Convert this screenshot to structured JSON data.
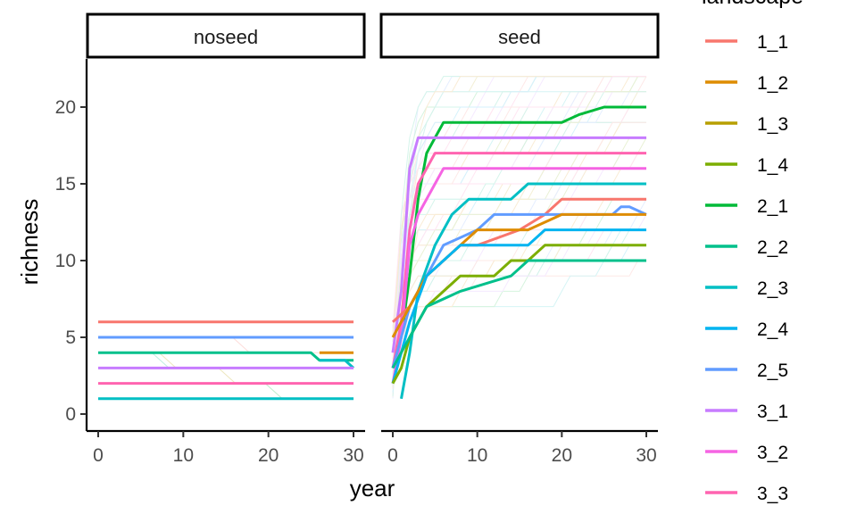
{
  "chart_data": {
    "type": "line",
    "facet_by": "seed treatment",
    "panels": [
      {
        "label": "noseed",
        "series": [
          {
            "name": "1_1",
            "x": [
              0,
              30
            ],
            "y": [
              6,
              6
            ]
          },
          {
            "name": "2_5",
            "x": [
              0,
              30
            ],
            "y": [
              5,
              5
            ]
          },
          {
            "name": "2_2",
            "x": [
              0,
              25,
              26,
              30
            ],
            "y": [
              4,
              4,
              3.5,
              3.5
            ]
          },
          {
            "name": "1_2",
            "x": [
              26,
              30
            ],
            "y": [
              4,
              4
            ]
          },
          {
            "name": "2_3",
            "x": [
              26,
              29,
              30
            ],
            "y": [
              3.5,
              3.5,
              3
            ]
          },
          {
            "name": "3_1",
            "x": [
              0,
              30
            ],
            "y": [
              3,
              3
            ]
          },
          {
            "name": "3_3",
            "x": [
              0,
              30
            ],
            "y": [
              2,
              2
            ]
          },
          {
            "name": "2_3",
            "x": [
              0,
              30
            ],
            "y": [
              1,
              1
            ]
          }
        ]
      },
      {
        "label": "seed",
        "series": [
          {
            "name": "2_1",
            "x": [
              0,
              1,
              2,
              3,
              4,
              5,
              6,
              7,
              20,
              22,
              25,
              30
            ],
            "y": [
              3,
              5,
              9,
              14,
              17,
              18,
              19,
              19,
              19,
              19.5,
              20,
              20
            ]
          },
          {
            "name": "3_1",
            "x": [
              0,
              1,
              2,
              3,
              4,
              30
            ],
            "y": [
              4,
              8,
              16,
              18,
              18,
              18
            ]
          },
          {
            "name": "3_3",
            "x": [
              0,
              1,
              2,
              3,
              4,
              5,
              30
            ],
            "y": [
              3,
              6,
              12,
              15,
              16,
              17,
              17
            ]
          },
          {
            "name": "3_2",
            "x": [
              0,
              1,
              2,
              3,
              5,
              6,
              7,
              30
            ],
            "y": [
              2,
              5,
              11,
              13,
              15,
              16,
              16,
              16
            ]
          },
          {
            "name": "2_3",
            "x": [
              1,
              2,
              3,
              5,
              7,
              9,
              14,
              16,
              30
            ],
            "y": [
              1,
              4,
              8,
              11,
              13,
              14,
              14,
              15,
              15
            ]
          },
          {
            "name": "1_1",
            "x": [
              0,
              2,
              4,
              6,
              8,
              10,
              15,
              18,
              20,
              30
            ],
            "y": [
              6,
              7,
              9,
              10,
              11,
              11,
              12,
              13,
              14,
              14
            ]
          },
          {
            "name": "2_5",
            "x": [
              0,
              1,
              2,
              4,
              6,
              10,
              12,
              14,
              26,
              27,
              28,
              30
            ],
            "y": [
              3,
              5,
              7,
              9,
              11,
              12,
              13,
              13,
              13,
              13.5,
              13.5,
              13
            ]
          },
          {
            "name": "1_2",
            "x": [
              0,
              2,
              4,
              6,
              8,
              10,
              16,
              18,
              20,
              22,
              30
            ],
            "y": [
              5,
              7,
              9,
              10,
              11,
              12,
              12,
              12.5,
              13,
              13,
              13
            ]
          },
          {
            "name": "2_4",
            "x": [
              0,
              1,
              2,
              4,
              6,
              8,
              16,
              18,
              30
            ],
            "y": [
              2,
              4,
              6,
              9,
              10,
              11,
              11,
              12,
              12
            ]
          },
          {
            "name": "1_4",
            "x": [
              0,
              1,
              2,
              4,
              6,
              8,
              12,
              14,
              16,
              18,
              30
            ],
            "y": [
              2,
              3,
              5,
              7,
              8,
              9,
              9,
              10,
              10,
              11,
              11
            ]
          },
          {
            "name": "2_2",
            "x": [
              0,
              2,
              4,
              8,
              14,
              16,
              30
            ],
            "y": [
              3,
              5,
              7,
              8,
              9,
              10,
              10
            ]
          }
        ]
      }
    ],
    "xlabel": "year",
    "ylabel": "richness",
    "xlim": [
      0,
      30
    ],
    "ylim": [
      0,
      22
    ],
    "x_ticks": [
      0,
      10,
      20,
      30
    ],
    "y_ticks": [
      0,
      5,
      10,
      15,
      20
    ],
    "grid": false,
    "legend": {
      "title": "landscape",
      "position": "right",
      "entries": [
        {
          "name": "1_1",
          "color": "#F8766D"
        },
        {
          "name": "1_2",
          "color": "#DE8C00"
        },
        {
          "name": "1_3",
          "color": "#B79F00"
        },
        {
          "name": "1_4",
          "color": "#7CAE00"
        },
        {
          "name": "2_1",
          "color": "#00BA38"
        },
        {
          "name": "2_2",
          "color": "#00C08B"
        },
        {
          "name": "2_3",
          "color": "#00BFC4"
        },
        {
          "name": "2_4",
          "color": "#00B4F0"
        },
        {
          "name": "2_5",
          "color": "#619CFF"
        },
        {
          "name": "3_1",
          "color": "#C77CFF"
        },
        {
          "name": "3_2",
          "color": "#F564E3"
        },
        {
          "name": "3_3",
          "color": "#FF64B0"
        }
      ]
    }
  }
}
